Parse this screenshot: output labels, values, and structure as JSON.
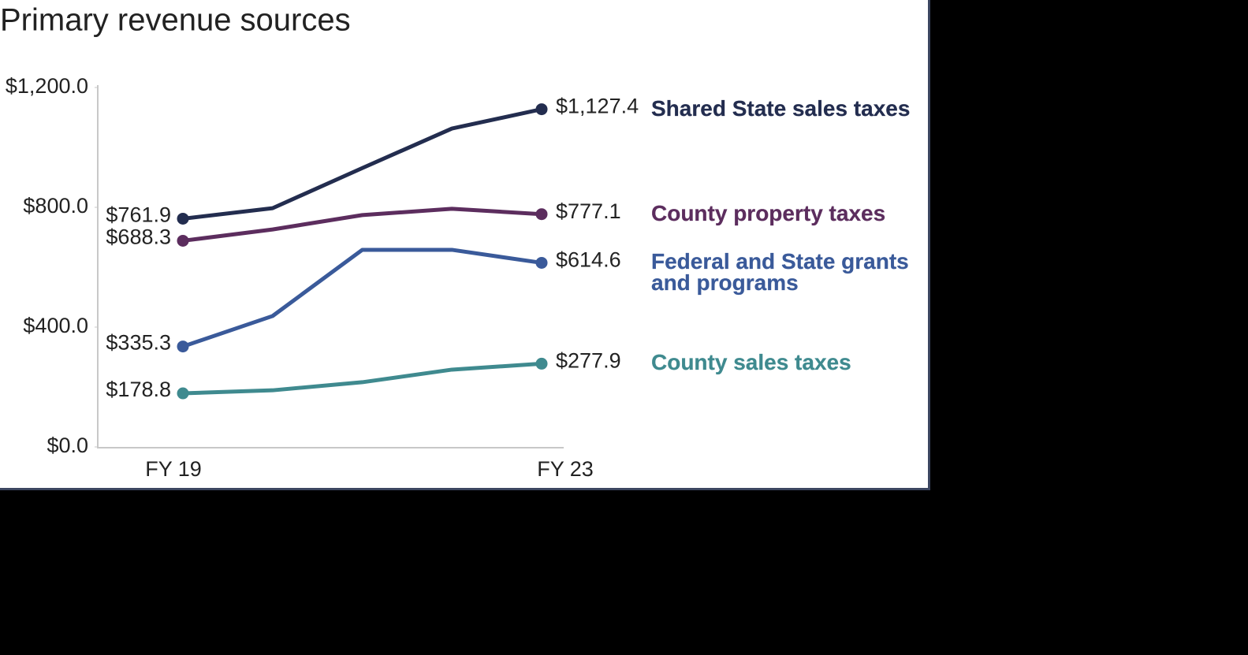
{
  "chart_data": {
    "type": "line",
    "title": "Primary revenue sources",
    "categories": [
      "FY 19",
      null,
      null,
      null,
      "FY 23"
    ],
    "ylim": [
      0,
      1200
    ],
    "yticks": [
      {
        "value": 0,
        "label": "$0.0"
      },
      {
        "value": 400,
        "label": "$400.0"
      },
      {
        "value": 800,
        "label": "$800.0"
      },
      {
        "value": 1200,
        "label": "$1,200.0"
      }
    ],
    "grid": false,
    "series": [
      {
        "name": "Shared State sales taxes",
        "color": "#232d4f",
        "values": [
          761.9,
          797,
          931,
          1063,
          1127.4
        ],
        "value_labels": [
          "$761.9",
          null,
          null,
          null,
          "$1,127.4"
        ]
      },
      {
        "name": "County property taxes",
        "color": "#5c2d5e",
        "values": [
          688.3,
          726,
          774,
          795,
          777.1
        ],
        "value_labels": [
          "$688.3",
          null,
          null,
          null,
          "$777.1"
        ]
      },
      {
        "name": "Federal and State grants and programs",
        "color": "#3a5a9a",
        "values": [
          335.3,
          437,
          658,
          658,
          614.6
        ],
        "value_labels": [
          "$335.3",
          null,
          null,
          null,
          "$614.6"
        ]
      },
      {
        "name": "County sales taxes",
        "color": "#3f8a8f",
        "values": [
          178.8,
          189,
          216,
          258,
          277.9
        ],
        "value_labels": [
          "$178.8",
          null,
          null,
          null,
          "$277.9"
        ]
      }
    ]
  }
}
